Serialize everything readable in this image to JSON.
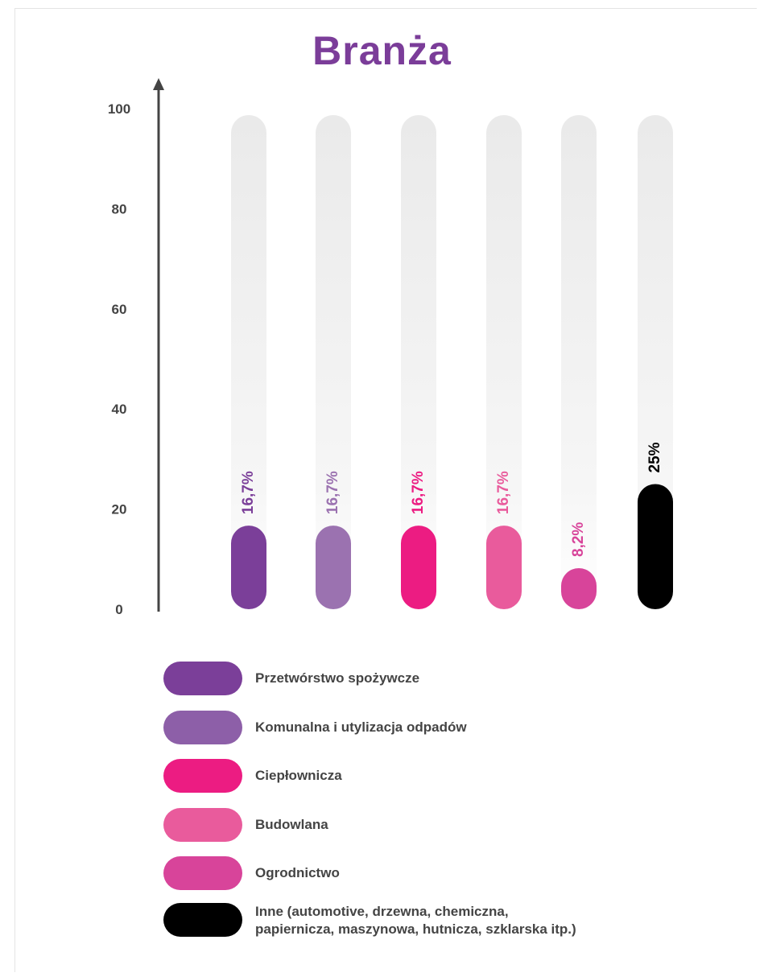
{
  "chart_data": {
    "type": "bar",
    "title": "Branża",
    "ylim": [
      0,
      100
    ],
    "y_ticks": [
      0,
      20,
      40,
      60,
      80,
      100
    ],
    "categories": [
      "Przetwórstwo spożywcze",
      "Komunalna i utylizacja odpadów",
      "Ciepłownicza",
      "Budowlana",
      "Ogrodnictwo",
      "Inne (automotive, drzewna, chemiczna,\npapiernicza, maszynowa, hutnicza, szklarska itp.)"
    ],
    "values": [
      16.7,
      16.7,
      16.7,
      16.7,
      8.2,
      25
    ],
    "value_labels": [
      "16,7%",
      "16,7%",
      "16,7%",
      "16,7%",
      "8,2%",
      "25%"
    ],
    "colors": [
      "#7b3f99",
      "#9b72b0",
      "#ec1c82",
      "#e95b9c",
      "#d8449a",
      "#000000"
    ],
    "label_colors": [
      "#7b3f99",
      "#9b72b0",
      "#ec1c82",
      "#e95b9c",
      "#d8449a",
      "#000000"
    ],
    "legend_colors": [
      "#7b3f99",
      "#8d5fa8",
      "#ec1c82",
      "#e95b9c",
      "#d8449a",
      "#000000"
    ],
    "track_color": "#ececec",
    "grid": false,
    "legend_position": "bottom"
  }
}
